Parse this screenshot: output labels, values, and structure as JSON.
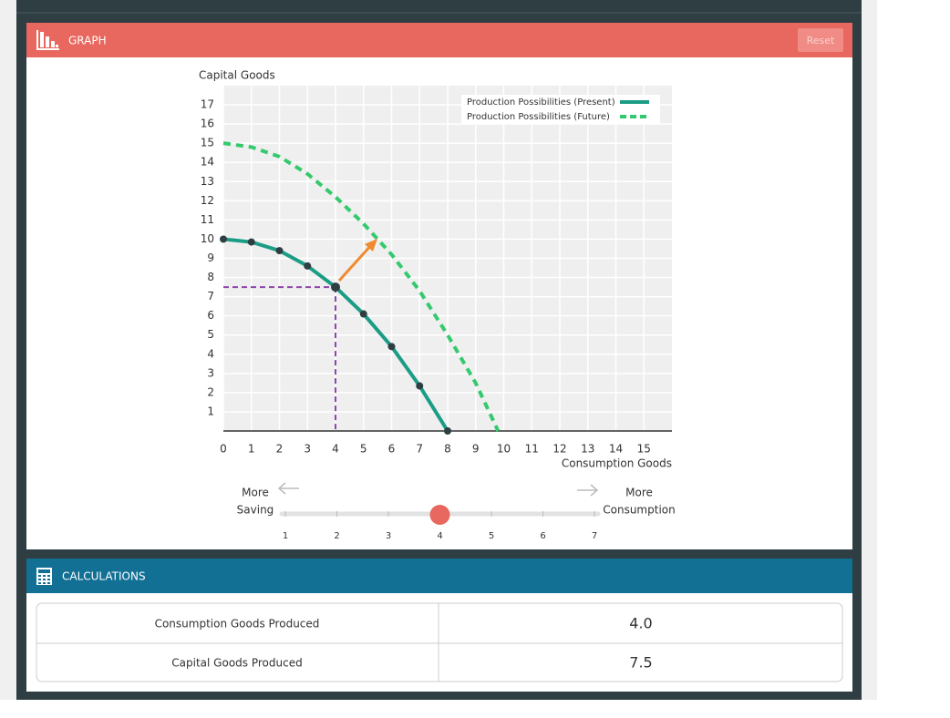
{
  "header": {
    "title": "GRAPH",
    "reset": "Reset"
  },
  "chart_data": {
    "type": "line",
    "y_label": "Capital Goods",
    "x_label": "Consumption Goods",
    "xlim": [
      0,
      16
    ],
    "ylim": [
      0,
      18
    ],
    "xticks": [
      0,
      1,
      2,
      3,
      4,
      5,
      6,
      7,
      8,
      9,
      10,
      11,
      12,
      13,
      14,
      15
    ],
    "yticks": [
      1,
      2,
      3,
      4,
      5,
      6,
      7,
      8,
      9,
      10,
      11,
      12,
      13,
      14,
      15,
      16,
      17
    ],
    "grid": true,
    "legend": "top-right",
    "series": [
      {
        "name": "Production Possibilities (Present)",
        "color": "#1b9c85",
        "style": "solid",
        "markers": true,
        "x": [
          0,
          1,
          2,
          3,
          4,
          5,
          6,
          7,
          8
        ],
        "values": [
          10,
          9.85,
          9.4,
          8.6,
          7.5,
          6.1,
          4.4,
          2.35,
          0
        ]
      },
      {
        "name": "Production Possibilities (Future)",
        "color": "#35c96e",
        "style": "dashed",
        "markers": false,
        "x": [
          0,
          1,
          2,
          3,
          4,
          5,
          6,
          7,
          8,
          9,
          9.8
        ],
        "values": [
          15,
          14.8,
          14.3,
          13.4,
          12.2,
          10.8,
          9.2,
          7.3,
          5,
          2.5,
          0
        ]
      }
    ]
  },
  "slider": {
    "left_lines": [
      "More",
      "Saving"
    ],
    "right_lines": [
      "More",
      "Consumption"
    ],
    "ticks": [
      1,
      2,
      3,
      4,
      5,
      6,
      7
    ],
    "value": 4
  },
  "calculations": {
    "title": "CALCULATIONS",
    "rows": [
      [
        "Consumption Goods Produced",
        "4.0"
      ],
      [
        "Capital Goods Produced",
        "7.5"
      ]
    ]
  }
}
